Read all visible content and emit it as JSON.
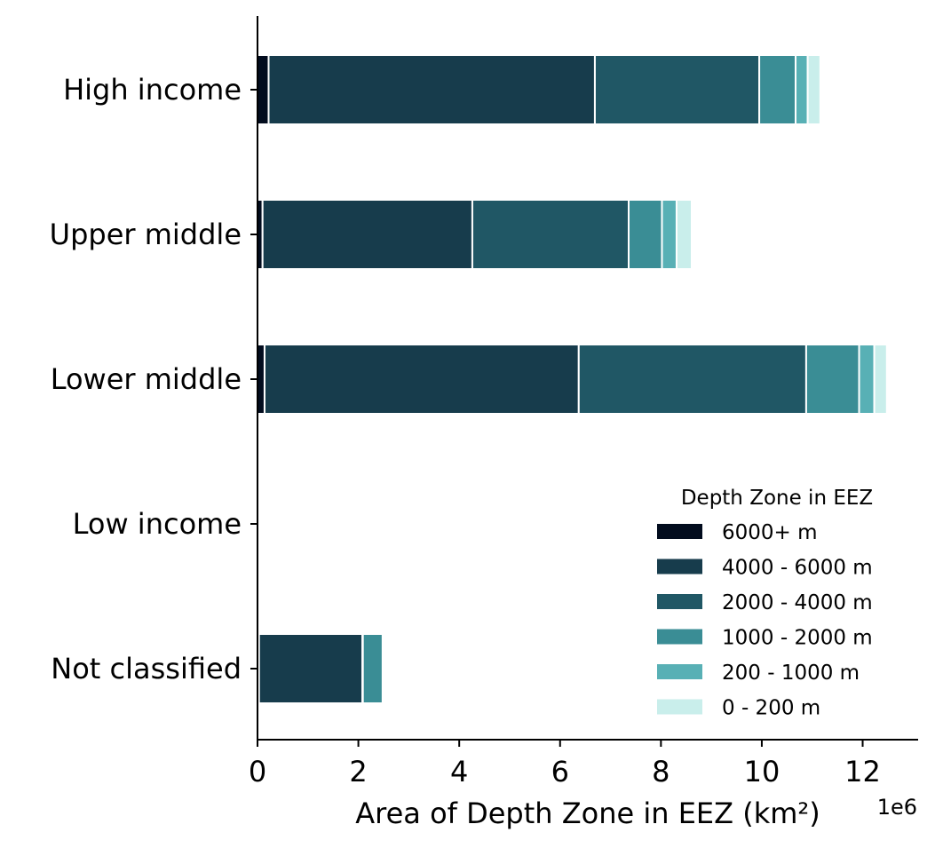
{
  "chart_data": {
    "type": "bar",
    "orientation": "horizontal",
    "stacked": true,
    "title": "",
    "xlabel": "Area of Depth Zone in EEZ (km²)",
    "ylabel": "",
    "x_offset_label": "1e6",
    "x_scale": 1000000,
    "xlim": [
      0,
      13.1
    ],
    "x_ticks": [
      0,
      2,
      4,
      6,
      8,
      10,
      12
    ],
    "x_tick_labels": [
      "0",
      "2",
      "4",
      "6",
      "8",
      "10",
      "12"
    ],
    "grid": false,
    "legend": {
      "title": "Depth Zone in EEZ",
      "placement": "lower-right"
    },
    "categories": [
      "High income",
      "Upper middle",
      "Lower middle",
      "Low income",
      "Not classified"
    ],
    "series": [
      {
        "name": "6000+ m",
        "color": "#020c1e",
        "values": [
          0.22,
          0.1,
          0.14,
          0,
          0.03
        ]
      },
      {
        "name": "4000 - 6000 m",
        "color": "#173c4c",
        "values": [
          6.47,
          4.16,
          6.23,
          0,
          2.05
        ]
      },
      {
        "name": "2000 - 4000 m",
        "color": "#205765",
        "values": [
          3.26,
          3.1,
          4.51,
          0,
          0.01
        ]
      },
      {
        "name": "1000 - 2000 m",
        "color": "#3a8d95",
        "values": [
          0.72,
          0.66,
          1.05,
          0,
          0.39
        ]
      },
      {
        "name": "200 - 1000 m",
        "color": "#58b0b5",
        "values": [
          0.24,
          0.29,
          0.3,
          0,
          0.0
        ]
      },
      {
        "name": "0 - 200 m",
        "color": "#c9eeeb",
        "values": [
          0.25,
          0.3,
          0.25,
          0,
          0.0
        ]
      }
    ]
  }
}
